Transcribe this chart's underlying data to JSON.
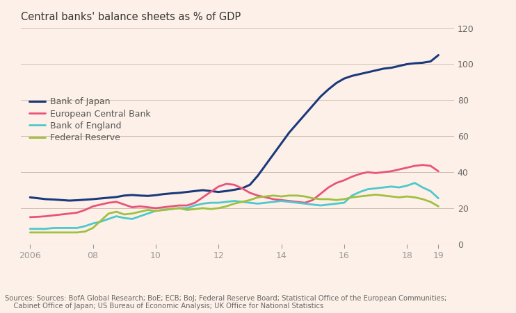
{
  "title": "Central banks' balance sheets as % of GDP",
  "source_text": "Sources: Sources: BofA Global Research; BoE; ECB; BoJ; Federal Reserve Board; Statistical Office of the European Communities;\n    Cabinet Office of Japan; US Bureau of Economic Analysis; UK Office for National Statistics",
  "background_color": "#fdf0e8",
  "grid_color": "#cfc0b0",
  "ylim": [
    0,
    120
  ],
  "yticks": [
    0,
    20,
    40,
    60,
    80,
    100,
    120
  ],
  "series": {
    "Bank of Japan": {
      "color": "#1a3a7c",
      "linewidth": 2.2,
      "x": [
        2006.0,
        2006.25,
        2006.5,
        2006.75,
        2007.0,
        2007.25,
        2007.5,
        2007.75,
        2008.0,
        2008.25,
        2008.5,
        2008.75,
        2009.0,
        2009.25,
        2009.5,
        2009.75,
        2010.0,
        2010.25,
        2010.5,
        2010.75,
        2011.0,
        2011.25,
        2011.5,
        2011.75,
        2012.0,
        2012.25,
        2012.5,
        2012.75,
        2013.0,
        2013.25,
        2013.5,
        2013.75,
        2014.0,
        2014.25,
        2014.5,
        2014.75,
        2015.0,
        2015.25,
        2015.5,
        2015.75,
        2016.0,
        2016.25,
        2016.5,
        2016.75,
        2017.0,
        2017.25,
        2017.5,
        2017.75,
        2018.0,
        2018.25,
        2018.5,
        2018.75,
        2019.0
      ],
      "y": [
        26.0,
        25.5,
        25.0,
        24.8,
        24.5,
        24.2,
        24.4,
        24.7,
        25.0,
        25.4,
        25.8,
        26.2,
        27.0,
        27.3,
        27.0,
        26.8,
        27.2,
        27.8,
        28.2,
        28.5,
        29.0,
        29.5,
        30.0,
        29.5,
        29.0,
        29.5,
        30.2,
        31.0,
        33.0,
        38.0,
        44.0,
        50.0,
        56.0,
        62.0,
        67.0,
        72.0,
        77.0,
        82.0,
        86.0,
        89.5,
        92.0,
        93.5,
        94.5,
        95.5,
        96.5,
        97.5,
        98.0,
        99.0,
        100.0,
        100.5,
        100.8,
        101.5,
        105.0
      ]
    },
    "European Central Bank": {
      "color": "#e8537a",
      "linewidth": 2.0,
      "x": [
        2006.0,
        2006.25,
        2006.5,
        2006.75,
        2007.0,
        2007.25,
        2007.5,
        2007.75,
        2008.0,
        2008.25,
        2008.5,
        2008.75,
        2009.0,
        2009.25,
        2009.5,
        2009.75,
        2010.0,
        2010.25,
        2010.5,
        2010.75,
        2011.0,
        2011.25,
        2011.5,
        2011.75,
        2012.0,
        2012.25,
        2012.5,
        2012.75,
        2013.0,
        2013.25,
        2013.5,
        2013.75,
        2014.0,
        2014.25,
        2014.5,
        2014.75,
        2015.0,
        2015.25,
        2015.5,
        2015.75,
        2016.0,
        2016.25,
        2016.5,
        2016.75,
        2017.0,
        2017.25,
        2017.5,
        2017.75,
        2018.0,
        2018.25,
        2018.5,
        2018.75,
        2019.0
      ],
      "y": [
        15.0,
        15.2,
        15.5,
        16.0,
        16.5,
        17.0,
        17.5,
        19.0,
        21.0,
        22.0,
        23.0,
        23.5,
        22.0,
        20.5,
        21.0,
        20.5,
        20.0,
        20.5,
        21.0,
        21.5,
        21.5,
        23.0,
        26.0,
        29.0,
        32.0,
        33.5,
        33.0,
        31.0,
        28.5,
        27.0,
        26.0,
        25.0,
        24.5,
        24.0,
        23.5,
        23.0,
        24.5,
        28.0,
        31.5,
        34.0,
        35.5,
        37.5,
        39.0,
        40.0,
        39.5,
        40.0,
        40.5,
        41.5,
        42.5,
        43.5,
        44.0,
        43.5,
        40.5
      ]
    },
    "Bank of England": {
      "color": "#4dc8cc",
      "linewidth": 2.0,
      "x": [
        2006.0,
        2006.25,
        2006.5,
        2006.75,
        2007.0,
        2007.25,
        2007.5,
        2007.75,
        2008.0,
        2008.25,
        2008.5,
        2008.75,
        2009.0,
        2009.25,
        2009.5,
        2009.75,
        2010.0,
        2010.25,
        2010.5,
        2010.75,
        2011.0,
        2011.25,
        2011.5,
        2011.75,
        2012.0,
        2012.25,
        2012.5,
        2012.75,
        2013.0,
        2013.25,
        2013.5,
        2013.75,
        2014.0,
        2014.25,
        2014.5,
        2014.75,
        2015.0,
        2015.25,
        2015.5,
        2015.75,
        2016.0,
        2016.25,
        2016.5,
        2016.75,
        2017.0,
        2017.25,
        2017.5,
        2017.75,
        2018.0,
        2018.25,
        2018.5,
        2018.75,
        2019.0
      ],
      "y": [
        8.5,
        8.5,
        8.5,
        9.0,
        9.0,
        9.0,
        9.0,
        10.0,
        11.5,
        12.5,
        14.0,
        15.5,
        14.5,
        14.0,
        15.5,
        17.0,
        18.5,
        19.0,
        19.5,
        20.0,
        20.0,
        21.5,
        22.5,
        23.0,
        23.0,
        23.5,
        24.0,
        23.5,
        23.0,
        22.5,
        23.0,
        23.5,
        24.0,
        23.5,
        23.0,
        22.5,
        22.0,
        21.5,
        22.0,
        22.5,
        23.0,
        27.0,
        29.0,
        30.5,
        31.0,
        31.5,
        32.0,
        31.5,
        32.5,
        34.0,
        31.5,
        29.5,
        25.5
      ]
    },
    "Federal Reserve": {
      "color": "#a0c040",
      "linewidth": 2.0,
      "x": [
        2006.0,
        2006.25,
        2006.5,
        2006.75,
        2007.0,
        2007.25,
        2007.5,
        2007.75,
        2008.0,
        2008.25,
        2008.5,
        2008.75,
        2009.0,
        2009.25,
        2009.5,
        2009.75,
        2010.0,
        2010.25,
        2010.5,
        2010.75,
        2011.0,
        2011.25,
        2011.5,
        2011.75,
        2012.0,
        2012.25,
        2012.5,
        2012.75,
        2013.0,
        2013.25,
        2013.5,
        2013.75,
        2014.0,
        2014.25,
        2014.5,
        2014.75,
        2015.0,
        2015.25,
        2015.5,
        2015.75,
        2016.0,
        2016.25,
        2016.5,
        2016.75,
        2017.0,
        2017.25,
        2017.5,
        2017.75,
        2018.0,
        2018.25,
        2018.5,
        2018.75,
        2019.0
      ],
      "y": [
        6.5,
        6.5,
        6.5,
        6.5,
        6.5,
        6.5,
        6.5,
        7.0,
        9.0,
        13.0,
        17.0,
        18.0,
        16.5,
        17.0,
        18.0,
        19.0,
        18.5,
        19.0,
        19.5,
        20.0,
        19.0,
        19.5,
        20.0,
        19.5,
        20.0,
        21.0,
        22.5,
        23.5,
        24.5,
        26.0,
        26.5,
        27.0,
        26.5,
        27.0,
        27.0,
        26.5,
        25.5,
        25.0,
        25.0,
        24.5,
        25.0,
        26.0,
        26.5,
        27.0,
        27.5,
        27.0,
        26.5,
        26.0,
        26.5,
        26.0,
        25.0,
        23.5,
        21.0
      ]
    }
  },
  "legend_order": [
    "Bank of Japan",
    "European Central Bank",
    "Bank of England",
    "Federal Reserve"
  ],
  "xticks": [
    2006,
    2008,
    2010,
    2012,
    2014,
    2016,
    2018,
    2019
  ],
  "xticklabels": [
    "2006",
    "08",
    "10",
    "12",
    "14",
    "16",
    "18",
    "19"
  ]
}
